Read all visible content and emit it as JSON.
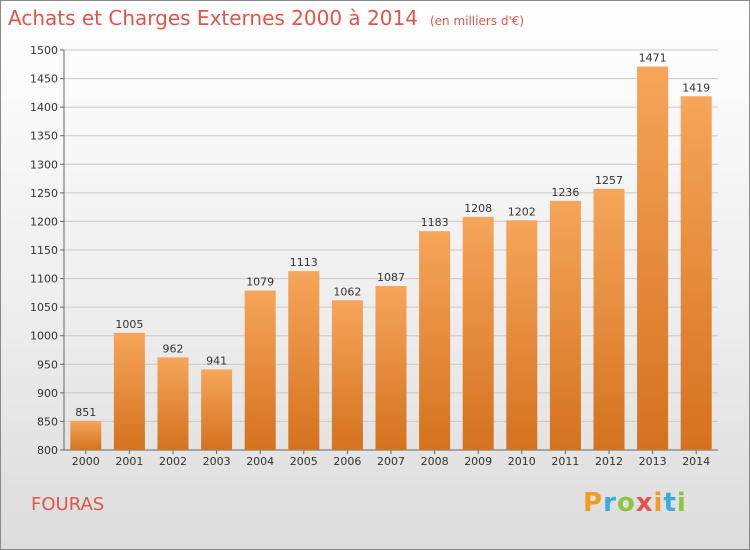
{
  "header": {
    "title": "Achats et Charges Externes 2000 à 2014",
    "subtitle": "(en milliers d'€)"
  },
  "footer": {
    "city": "FOURAS",
    "logo_text": "Proxiti"
  },
  "colors": {
    "title": "#e0554a",
    "bar_light": "#f6a55a",
    "bar_dark": "#d4721e",
    "grid": "#c8c8c8"
  },
  "chart_data": {
    "type": "bar",
    "title": "Achats et Charges Externes 2000 à 2014",
    "subtitle": "(en milliers d'€)",
    "categories": [
      "2000",
      "2001",
      "2002",
      "2003",
      "2004",
      "2005",
      "2006",
      "2007",
      "2008",
      "2009",
      "2010",
      "2011",
      "2012",
      "2013",
      "2014"
    ],
    "values": [
      851,
      1005,
      962,
      941,
      1079,
      1113,
      1062,
      1087,
      1183,
      1208,
      1202,
      1236,
      1257,
      1471,
      1419
    ],
    "data_labels": [
      "851",
      "1005",
      "962",
      "941",
      "1079",
      "1113",
      "1062",
      "1087",
      "1183",
      "1208",
      "1202",
      "1236",
      "1257",
      "1471",
      "1419"
    ],
    "ylim": [
      800,
      1500
    ],
    "yticks": [
      800,
      850,
      900,
      950,
      1000,
      1050,
      1100,
      1150,
      1200,
      1250,
      1300,
      1350,
      1400,
      1450,
      1500
    ],
    "ytick_labels": [
      "800",
      "850",
      "900",
      "950",
      "1000",
      "1050",
      "1100",
      "1150",
      "1200",
      "1250",
      "1300",
      "1350",
      "1400",
      "1450",
      "1500"
    ],
    "grid": true,
    "xlabel": "",
    "ylabel": ""
  }
}
